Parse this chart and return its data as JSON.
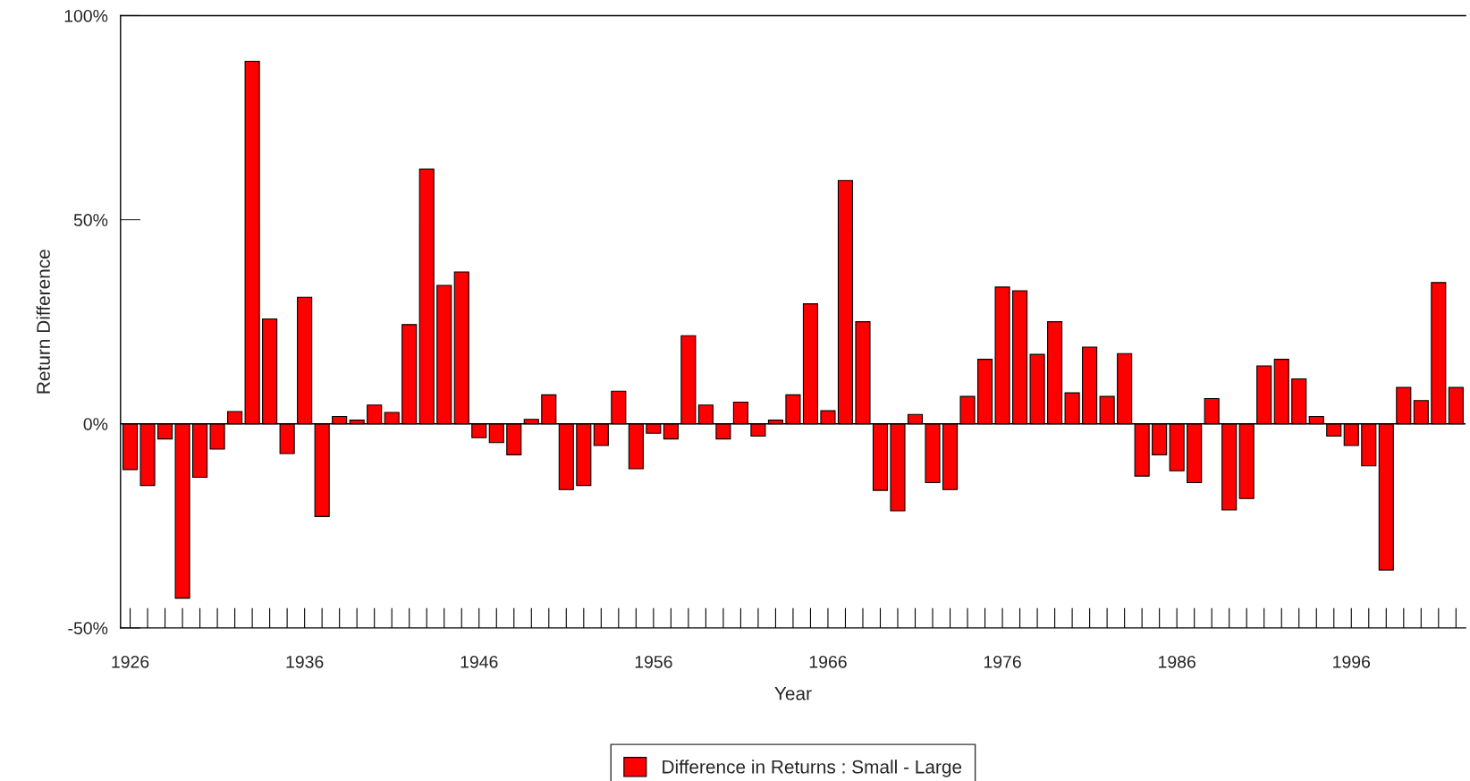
{
  "chart_data": {
    "type": "bar",
    "xlabel": "Year",
    "ylabel": "Return Difference",
    "categories": [
      "1926",
      null,
      null,
      null,
      null,
      null,
      null,
      null,
      null,
      null,
      "1936",
      null,
      null,
      null,
      null,
      null,
      null,
      null,
      null,
      null,
      "1946",
      null,
      null,
      null,
      null,
      null,
      null,
      null,
      null,
      null,
      "1956",
      null,
      null,
      null,
      null,
      null,
      null,
      null,
      null,
      null,
      "1966",
      null,
      null,
      null,
      null,
      null,
      null,
      null,
      null,
      null,
      "1976",
      null,
      null,
      null,
      null,
      null,
      null,
      null,
      null,
      null,
      "1986",
      null,
      null,
      null,
      null,
      null,
      null,
      null,
      null,
      null,
      "1996",
      null,
      null,
      null,
      null,
      null,
      null
    ],
    "series": [
      {
        "name": "Difference in Returns : Small - Large",
        "color": "#ff0000",
        "values": [
          -11.2,
          -15.1,
          -3.7,
          -42.7,
          -13.1,
          -6.2,
          3.0,
          88.8,
          25.7,
          -7.3,
          31.0,
          -22.7,
          1.8,
          0.9,
          4.6,
          2.8,
          24.3,
          62.4,
          33.9,
          37.2,
          -3.4,
          -4.6,
          -7.6,
          1.1,
          7.1,
          -16.1,
          -15.1,
          -5.3,
          8.0,
          -11.0,
          -2.3,
          -3.7,
          21.6,
          4.6,
          -3.7,
          5.3,
          -3.0,
          0.9,
          7.1,
          29.4,
          3.2,
          59.6,
          25.0,
          -16.3,
          -21.3,
          2.3,
          -14.4,
          -16.1,
          6.7,
          15.8,
          33.5,
          32.6,
          17.0,
          25.0,
          7.6,
          18.8,
          6.7,
          17.2,
          -12.8,
          -7.6,
          -11.5,
          -14.4,
          6.2,
          -21.1,
          -18.3,
          14.2,
          15.8,
          11.0,
          1.8,
          -3.0,
          -5.3,
          -10.3,
          -35.8,
          8.9,
          5.7,
          34.6,
          8.9
        ]
      }
    ],
    "ylim": [
      -50,
      100
    ],
    "yticks": [
      {
        "value": -50,
        "label": "-50%"
      },
      {
        "value": 0,
        "label": "0%"
      },
      {
        "value": 50,
        "label": "50%"
      },
      {
        "value": 100,
        "label": "100%"
      }
    ],
    "ref_lines": [
      {
        "axis": "y",
        "value": 0,
        "color": "#000000"
      }
    ],
    "grid": false,
    "legend": "bottom"
  }
}
